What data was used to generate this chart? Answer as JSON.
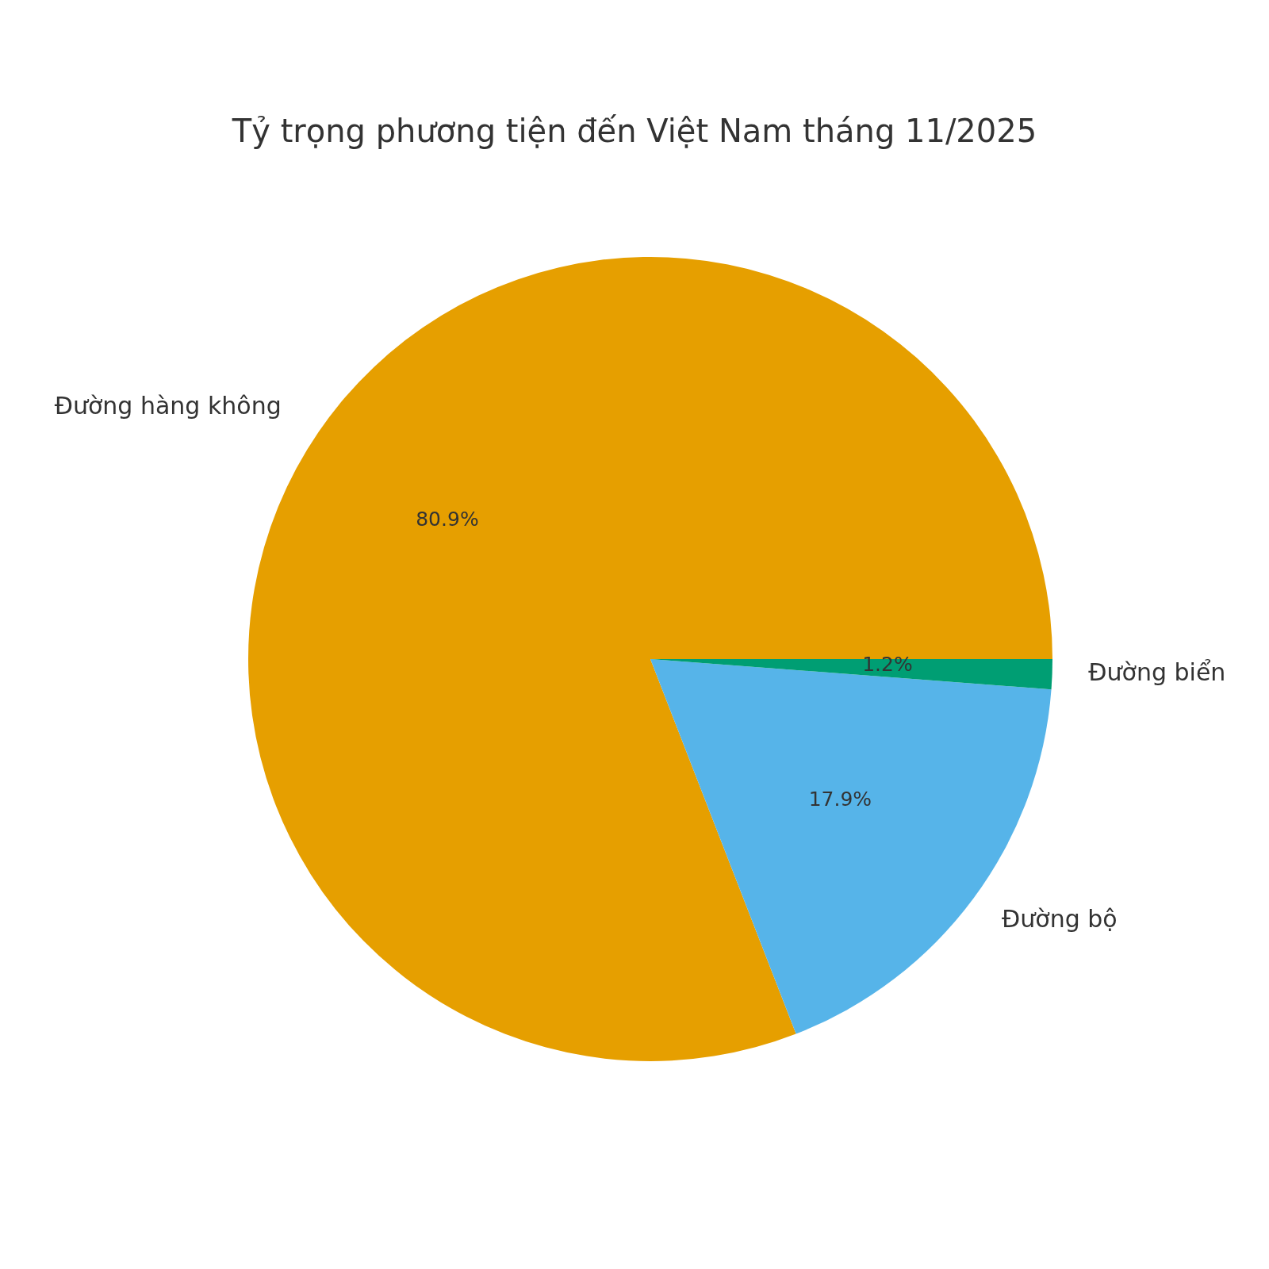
{
  "chart_data": {
    "type": "pie",
    "title": "Tỷ trọng phương tiện đến Việt Nam tháng 11/2025",
    "categories": [
      "Đường hàng không",
      "Đường bộ",
      "Đường biển"
    ],
    "values": [
      80.9,
      17.9,
      1.2
    ],
    "colors": [
      "#e69f00",
      "#56b4e9",
      "#009e73"
    ],
    "value_labels": [
      "80.9%",
      "17.9%",
      "1.2%"
    ],
    "legend": false
  }
}
